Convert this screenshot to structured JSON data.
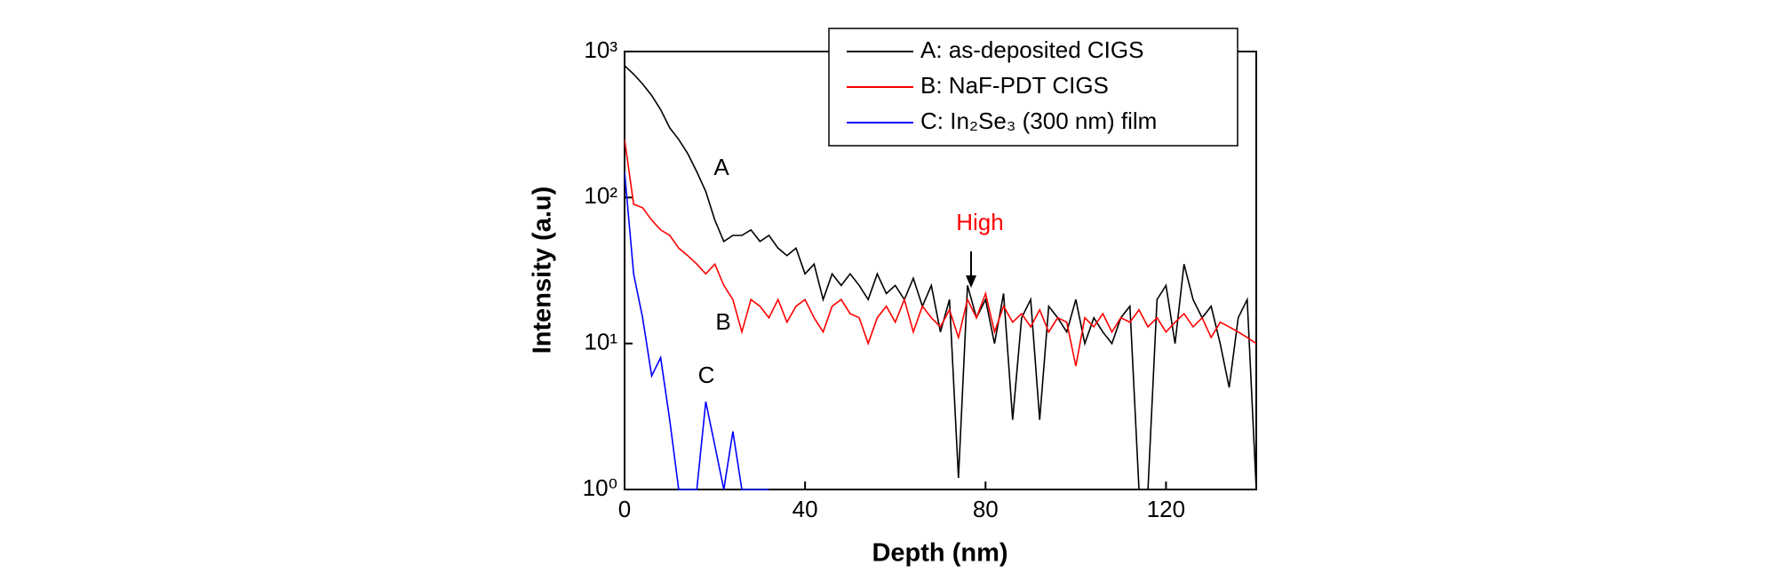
{
  "chart_data": {
    "type": "line",
    "xlabel": "Depth (nm)",
    "ylabel": "Intensity (a.u)",
    "x": [
      0,
      2,
      4,
      6,
      8,
      10,
      12,
      14,
      16,
      18,
      20,
      22,
      24,
      26,
      28,
      30,
      32,
      34,
      36,
      38,
      40,
      42,
      44,
      46,
      48,
      50,
      52,
      54,
      56,
      58,
      60,
      62,
      64,
      66,
      68,
      70,
      72,
      74,
      76,
      78,
      80,
      82,
      84,
      86,
      88,
      90,
      92,
      94,
      96,
      98,
      100,
      102,
      104,
      106,
      108,
      110,
      112,
      114,
      116,
      118,
      120,
      122,
      124,
      126,
      128,
      130,
      132,
      134,
      136,
      138,
      140
    ],
    "series": [
      {
        "name": "A: as-deposited CIGS",
        "color": "#000000",
        "values": [
          800,
          700,
          600,
          500,
          400,
          300,
          250,
          200,
          150,
          110,
          70,
          50,
          55,
          55,
          60,
          50,
          55,
          45,
          40,
          45,
          30,
          35,
          20,
          30,
          25,
          30,
          25,
          20,
          30,
          22,
          25,
          20,
          28,
          18,
          25,
          12,
          20,
          1.2,
          25,
          15,
          20,
          10,
          22,
          3,
          15,
          20,
          3,
          18,
          15,
          12,
          20,
          10,
          15,
          12,
          10,
          15,
          18,
          1,
          1,
          20,
          25,
          10,
          35,
          20,
          15,
          18,
          10,
          5,
          15,
          20,
          1
        ]
      },
      {
        "name": "B: NaF-PDT CIGS",
        "color": "#ff0000",
        "values": [
          250,
          90,
          85,
          70,
          60,
          55,
          45,
          40,
          35,
          30,
          35,
          25,
          20,
          12,
          20,
          18,
          15,
          20,
          14,
          18,
          20,
          15,
          12,
          18,
          20,
          16,
          15,
          10,
          15,
          18,
          14,
          20,
          12,
          18,
          15,
          13,
          17,
          11,
          20,
          15,
          22,
          12,
          18,
          14,
          16,
          13,
          17,
          12,
          15,
          14,
          7,
          15,
          13,
          16,
          12,
          15,
          14,
          17,
          13,
          15,
          12,
          14,
          16,
          13,
          15,
          11,
          14,
          13,
          12,
          11,
          10
        ]
      },
      {
        "name": "C: In₂Se₃ (300 nm) film",
        "color": "#0000ff",
        "values": [
          150,
          30,
          15,
          6,
          8,
          3,
          1,
          1,
          1,
          4,
          2,
          1,
          2.5,
          1,
          1,
          1,
          1,
          null,
          null,
          null,
          null,
          null,
          null,
          null,
          null,
          null,
          null,
          null,
          null,
          null,
          null,
          null,
          null,
          null,
          null,
          null,
          null,
          null,
          null,
          null,
          null,
          null,
          null,
          null,
          null,
          null,
          null,
          null,
          null,
          null,
          null,
          null,
          null,
          null,
          null,
          null,
          null,
          null,
          null,
          null,
          null,
          null,
          null,
          null,
          null,
          null,
          null,
          null,
          null,
          null,
          null
        ]
      }
    ],
    "xlim": [
      0,
      140
    ],
    "xticks": [
      0,
      40,
      80,
      120
    ],
    "ylim": [
      1,
      1000
    ],
    "log_y": true,
    "yticks": [
      {
        "value": 1,
        "label": "10⁰"
      },
      {
        "value": 10,
        "label": "10¹"
      },
      {
        "value": 100,
        "label": "10²"
      },
      {
        "value": 1000,
        "label": "10³"
      }
    ],
    "legend": "upper right",
    "annotations": [
      {
        "text": "A"
      },
      {
        "text": "B"
      },
      {
        "text": "C"
      },
      {
        "text": "High",
        "color": "#ff0000"
      }
    ]
  }
}
